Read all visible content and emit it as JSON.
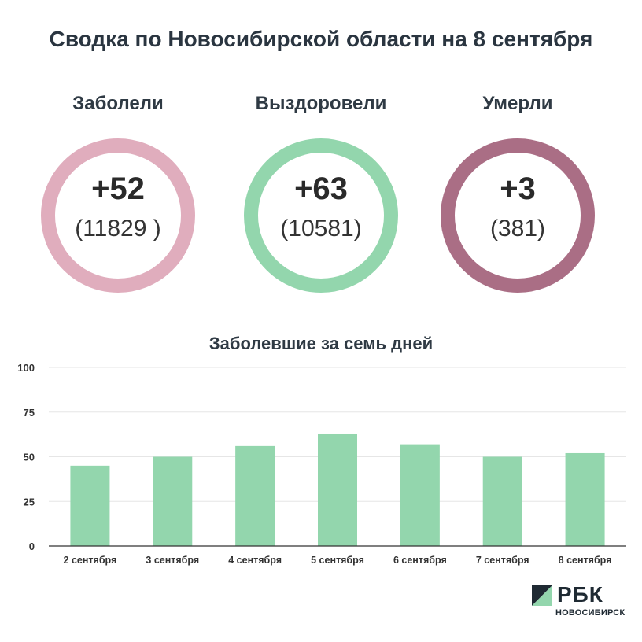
{
  "title": "Сводка по Новосибирской области на 8 сентября",
  "stats": [
    {
      "label": "Заболели",
      "delta": "+52",
      "total": "(11829 )",
      "color": "#e0adbd"
    },
    {
      "label": "Выздоровели",
      "delta": "+63",
      "total": "(10581)",
      "color": "#93d6ad"
    },
    {
      "label": "Умерли",
      "delta": "+3",
      "total": "(381)",
      "color": "#aa6e85"
    }
  ],
  "chart_data": {
    "type": "bar",
    "title": "Заболевшие за семь дней",
    "categories": [
      "2 сентября",
      "3 сентября",
      "4 сентября",
      "5 сентября",
      "6 сентября",
      "7 сентября",
      "8 сентября"
    ],
    "values": [
      45,
      50,
      56,
      63,
      57,
      50,
      52
    ],
    "ylim": [
      0,
      100
    ],
    "yticks": [
      0,
      25,
      50,
      75,
      100
    ],
    "grid": true,
    "bar_color": "#93d6ad"
  },
  "logo": {
    "name": "РБК",
    "city": "НОВОСИБИРСК"
  }
}
